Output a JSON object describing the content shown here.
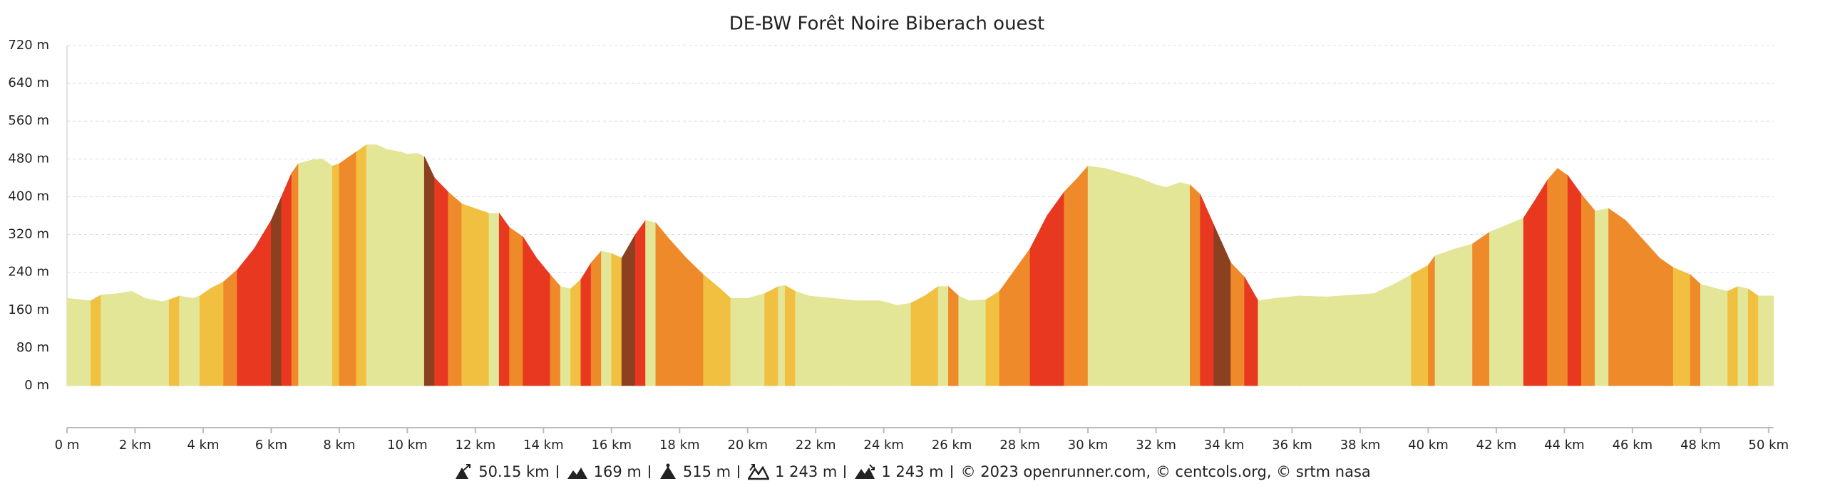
{
  "chart_data": {
    "type": "area",
    "title": "DE-BW Forêt Noire Biberach ouest",
    "x": [
      0,
      0.7,
      1,
      1.5,
      1.9,
      2.3,
      2.8,
      3,
      3.3,
      3.7,
      3.9,
      4.2,
      4.6,
      5,
      5.5,
      6,
      6.3,
      6.6,
      6.8,
      7.2,
      7.5,
      7.8,
      8,
      8.2,
      8.5,
      8.8,
      9.1,
      9.4,
      9.8,
      10,
      10.3,
      10.5,
      10.8,
      11.2,
      11.6,
      12,
      12.4,
      12.7,
      13,
      13.4,
      13.8,
      14.2,
      14.5,
      14.8,
      15.1,
      15.4,
      15.7,
      16,
      16.3,
      16.7,
      17,
      17.3,
      17.7,
      18.2,
      18.7,
      19.2,
      19.5,
      20,
      20.5,
      20.9,
      21.1,
      21.4,
      21.8,
      22.5,
      23.2,
      23.9,
      24.4,
      24.8,
      25.2,
      25.6,
      25.9,
      26.2,
      26.5,
      27,
      27.4,
      27.8,
      28.3,
      28.8,
      29.3,
      29.7,
      30,
      30.5,
      31,
      31.5,
      32,
      32.3,
      32.7,
      33,
      33.3,
      33.7,
      34.2,
      34.6,
      35,
      35.5,
      36.2,
      37,
      37.8,
      38.4,
      39,
      39.5,
      40,
      40.2,
      40.8,
      41.3,
      41.8,
      42.3,
      42.8,
      43.2,
      43.5,
      43.8,
      44.1,
      44.5,
      44.9,
      45.3,
      45.8,
      46.3,
      46.8,
      47.2,
      47.7,
      48,
      48.5,
      48.8,
      49.1,
      49.4,
      49.7,
      50.15
    ],
    "values": [
      185,
      180,
      192,
      195,
      200,
      185,
      178,
      182,
      190,
      185,
      190,
      205,
      220,
      245,
      290,
      350,
      400,
      450,
      470,
      478,
      480,
      465,
      470,
      480,
      495,
      510,
      510,
      500,
      495,
      490,
      492,
      485,
      440,
      410,
      385,
      375,
      365,
      365,
      335,
      315,
      270,
      235,
      210,
      205,
      225,
      260,
      285,
      280,
      270,
      320,
      350,
      345,
      310,
      270,
      235,
      205,
      185,
      185,
      195,
      210,
      212,
      200,
      190,
      185,
      180,
      180,
      170,
      175,
      190,
      210,
      210,
      190,
      180,
      182,
      200,
      240,
      290,
      360,
      410,
      440,
      465,
      460,
      450,
      440,
      425,
      420,
      430,
      425,
      405,
      340,
      260,
      230,
      180,
      185,
      190,
      188,
      192,
      195,
      215,
      235,
      255,
      275,
      290,
      300,
      325,
      340,
      355,
      400,
      435,
      460,
      445,
      405,
      370,
      375,
      350,
      310,
      270,
      250,
      235,
      215,
      205,
      200,
      210,
      205,
      190,
      190
    ],
    "segment_colors": [
      "#e3e697",
      "#f2c040",
      "#e3e697",
      "#e3e697",
      "#e3e697",
      "#e3e697",
      "#e3e697",
      "#f2c040",
      "#e3e697",
      "#e3e697",
      "#f2c040",
      "#f2c040",
      "#ef8a2a",
      "#e8381f",
      "#e8381f",
      "#8b4020",
      "#e8381f",
      "#ef8a2a",
      "#e3e697",
      "#e3e697",
      "#e3e697",
      "#f2c040",
      "#ef8a2a",
      "#ef8a2a",
      "#f2c040",
      "#e3e697",
      "#e3e697",
      "#e3e697",
      "#e3e697",
      "#e3e697",
      "#e3e697",
      "#8b4020",
      "#e8381f",
      "#ef8a2a",
      "#f2c040",
      "#f2c040",
      "#e3e697",
      "#e8381f",
      "#ef8a2a",
      "#e8381f",
      "#e8381f",
      "#ef8a2a",
      "#e3e697",
      "#f2c040",
      "#e8381f",
      "#ef8a2a",
      "#e3e697",
      "#f2c040",
      "#8b4020",
      "#e8381f",
      "#e3e697",
      "#ef8a2a",
      "#ef8a2a",
      "#ef8a2a",
      "#f2c040",
      "#f2c040",
      "#e3e697",
      "#e3e697",
      "#f2c040",
      "#e3e697",
      "#f2c040",
      "#e3e697",
      "#e3e697",
      "#e3e697",
      "#e3e697",
      "#e3e697",
      "#e3e697",
      "#f2c040",
      "#f2c040",
      "#e3e697",
      "#ef8a2a",
      "#e3e697",
      "#e3e697",
      "#f2c040",
      "#ef8a2a",
      "#ef8a2a",
      "#e8381f",
      "#e8381f",
      "#ef8a2a",
      "#ef8a2a",
      "#e3e697",
      "#e3e697",
      "#e3e697",
      "#e3e697",
      "#e3e697",
      "#e3e697",
      "#e3e697",
      "#ef8a2a",
      "#e8381f",
      "#8b4020",
      "#ef8a2a",
      "#e8381f",
      "#e3e697",
      "#e3e697",
      "#e3e697",
      "#e3e697",
      "#e3e697",
      "#e3e697",
      "#e3e697",
      "#f2c040",
      "#ef8a2a",
      "#e3e697",
      "#e3e697",
      "#ef8a2a",
      "#e3e697",
      "#e3e697",
      "#e8381f",
      "#e8381f",
      "#ef8a2a",
      "#ef8a2a",
      "#e8381f",
      "#ef8a2a",
      "#e3e697",
      "#ef8a2a",
      "#ef8a2a",
      "#ef8a2a",
      "#ef8a2a",
      "#f2c040",
      "#ef8a2a",
      "#e3e697",
      "#e3e697",
      "#f2c040",
      "#e3e697",
      "#f2c040",
      "#e3e697"
    ],
    "xlim": [
      0,
      50.15
    ],
    "ylim": [
      0,
      720
    ],
    "xticks": [
      {
        "value": 0,
        "label": "0 m"
      },
      {
        "value": 2,
        "label": "2 km"
      },
      {
        "value": 4,
        "label": "4 km"
      },
      {
        "value": 6,
        "label": "6 km"
      },
      {
        "value": 8,
        "label": "8 km"
      },
      {
        "value": 10,
        "label": "10 km"
      },
      {
        "value": 12,
        "label": "12 km"
      },
      {
        "value": 14,
        "label": "14 km"
      },
      {
        "value": 16,
        "label": "16 km"
      },
      {
        "value": 18,
        "label": "18 km"
      },
      {
        "value": 20,
        "label": "20 km"
      },
      {
        "value": 22,
        "label": "22 km"
      },
      {
        "value": 24,
        "label": "24 km"
      },
      {
        "value": 26,
        "label": "26 km"
      },
      {
        "value": 28,
        "label": "28 km"
      },
      {
        "value": 30,
        "label": "30 km"
      },
      {
        "value": 32,
        "label": "32 km"
      },
      {
        "value": 34,
        "label": "34 km"
      },
      {
        "value": 36,
        "label": "36 km"
      },
      {
        "value": 38,
        "label": "38 km"
      },
      {
        "value": 40,
        "label": "40 km"
      },
      {
        "value": 42,
        "label": "42 km"
      },
      {
        "value": 44,
        "label": "44 km"
      },
      {
        "value": 46,
        "label": "46 km"
      },
      {
        "value": 48,
        "label": "48 km"
      },
      {
        "value": 50,
        "label": "50 km"
      }
    ],
    "yticks": [
      {
        "value": 0,
        "label": "0 m"
      },
      {
        "value": 80,
        "label": "80 m"
      },
      {
        "value": 160,
        "label": "160 m"
      },
      {
        "value": 240,
        "label": "240 m"
      },
      {
        "value": 320,
        "label": "320 m"
      },
      {
        "value": 400,
        "label": "400 m"
      },
      {
        "value": 480,
        "label": "480 m"
      },
      {
        "value": 560,
        "label": "560 m"
      },
      {
        "value": 640,
        "label": "640 m"
      },
      {
        "value": 720,
        "label": "720 m"
      }
    ],
    "grid": true,
    "stats": [
      "50.15 km",
      "169 m",
      "515 m",
      "1 243 m",
      "1 243 m"
    ],
    "credits": "© 2023 openrunner.com, © centcols.org, © srtm nasa"
  }
}
